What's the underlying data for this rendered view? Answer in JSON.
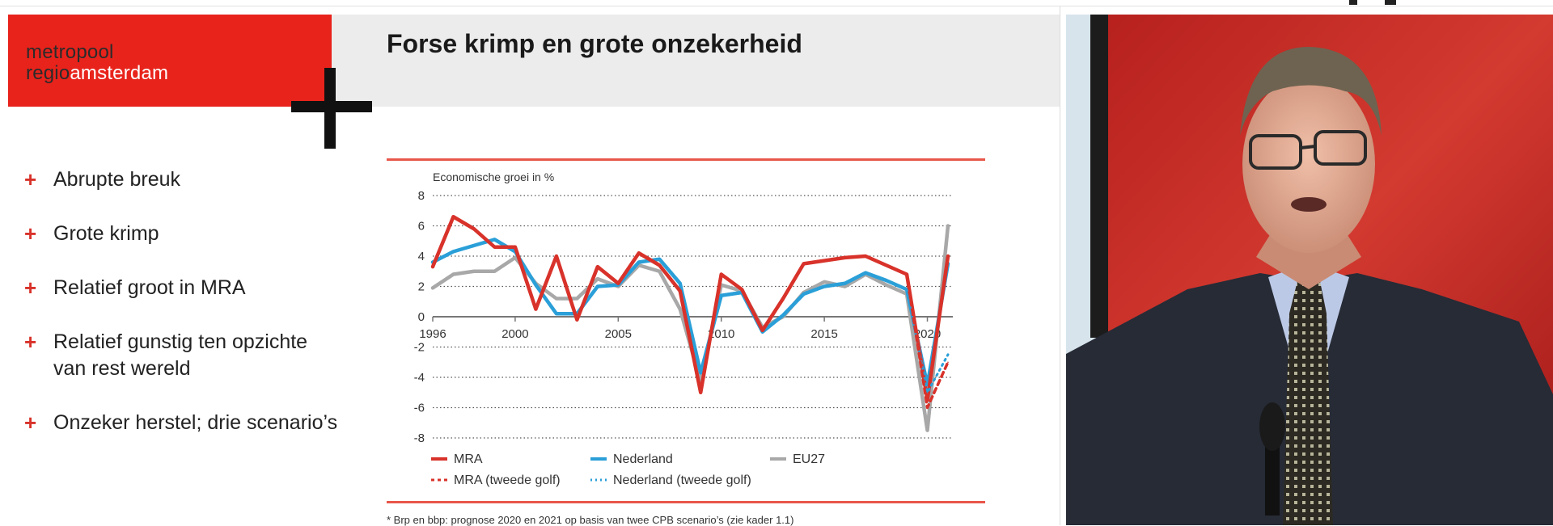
{
  "slide": {
    "logo": {
      "line1": "metropool",
      "line2_a": "regio",
      "line2_b": "amsterdam"
    },
    "title": "Forse krimp en grote onzekerheid",
    "bullets": [
      {
        "text": "Abrupte breuk"
      },
      {
        "text": "Grote krimp"
      },
      {
        "text": "Relatief groot in MRA"
      },
      {
        "text": "Relatief gunstig ten opzichte van rest wereld"
      },
      {
        "text": "Onzeker herstel; drie scenario’s"
      }
    ],
    "footnote": "* Brp en bbp: prognose 2020 en 2021 op basis van twee CPB scenario’s (zie kader 1.1)"
  },
  "colors": {
    "accent": "#e8231b",
    "mra": "#d8322a",
    "nederland": "#2a9fd8",
    "eu27": "#a8a8a8",
    "grid": "#555555"
  },
  "chart_data": {
    "type": "line",
    "title": "Economische groei in %",
    "xlabel": "",
    "ylabel": "",
    "ylim": [
      -8,
      8
    ],
    "xlim": [
      1996,
      2021
    ],
    "yticks": [
      8,
      6,
      4,
      2,
      0,
      -2,
      -4,
      -6,
      -8
    ],
    "xticks": [
      1996,
      2000,
      2005,
      2010,
      2015,
      2020
    ],
    "grid": "horizontal dotted",
    "legend_position": "bottom",
    "series": [
      {
        "name": "MRA",
        "style": "solid",
        "color": "#d8322a",
        "x": [
          1996,
          1997,
          1998,
          1999,
          2000,
          2001,
          2002,
          2003,
          2004,
          2005,
          2006,
          2007,
          2008,
          2009,
          2010,
          2011,
          2012,
          2013,
          2014,
          2015,
          2016,
          2017,
          2018,
          2019,
          2020,
          2021
        ],
        "y": [
          3.3,
          6.6,
          5.8,
          4.6,
          4.6,
          0.5,
          4.0,
          -0.2,
          3.3,
          2.2,
          4.2,
          3.4,
          1.7,
          -5.0,
          2.8,
          1.8,
          -0.9,
          1.2,
          3.5,
          3.7,
          3.9,
          4.0,
          3.4,
          2.8,
          -5.5,
          4.0
        ]
      },
      {
        "name": "Nederland",
        "style": "solid",
        "color": "#2a9fd8",
        "x": [
          1996,
          1997,
          1998,
          1999,
          2000,
          2001,
          2002,
          2003,
          2004,
          2005,
          2006,
          2007,
          2008,
          2009,
          2010,
          2011,
          2012,
          2013,
          2014,
          2015,
          2016,
          2017,
          2018,
          2019,
          2020,
          2021
        ],
        "y": [
          3.6,
          4.3,
          4.7,
          5.1,
          4.3,
          2.1,
          0.2,
          0.2,
          2.0,
          2.1,
          3.6,
          3.8,
          2.2,
          -3.7,
          1.4,
          1.6,
          -1.0,
          0.1,
          1.5,
          2.0,
          2.2,
          2.9,
          2.4,
          1.8,
          -4.5,
          3.5
        ]
      },
      {
        "name": "EU27",
        "style": "solid",
        "color": "#a8a8a8",
        "x": [
          1996,
          1997,
          1998,
          1999,
          2000,
          2001,
          2002,
          2003,
          2004,
          2005,
          2006,
          2007,
          2008,
          2009,
          2010,
          2011,
          2012,
          2013,
          2014,
          2015,
          2016,
          2017,
          2018,
          2019,
          2020,
          2021
        ],
        "y": [
          1.9,
          2.8,
          3.0,
          3.0,
          3.9,
          2.2,
          1.2,
          1.2,
          2.5,
          2.0,
          3.4,
          3.0,
          0.5,
          -4.3,
          2.1,
          1.7,
          -0.7,
          0.0,
          1.6,
          2.3,
          2.0,
          2.8,
          2.1,
          1.5,
          -7.5,
          6.0
        ]
      },
      {
        "name": "MRA (tweede golf)",
        "style": "dashed",
        "color": "#d8322a",
        "x": [
          2019,
          2020,
          2021
        ],
        "y": [
          2.8,
          -6.0,
          -3.0
        ]
      },
      {
        "name": "Nederland (tweede golf)",
        "style": "dotted",
        "color": "#2a9fd8",
        "x": [
          2019,
          2020,
          2021
        ],
        "y": [
          1.8,
          -5.0,
          -2.5
        ]
      }
    ]
  }
}
